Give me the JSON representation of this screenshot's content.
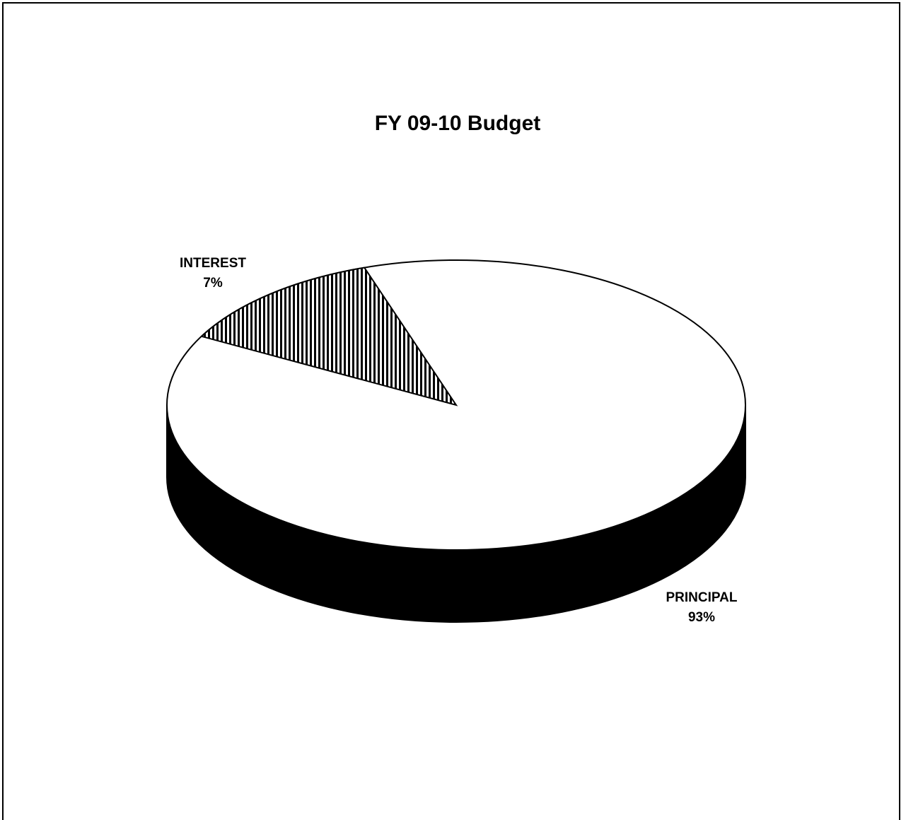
{
  "chart_data": {
    "type": "pie",
    "title": "FY 09-10 Budget",
    "style": "3d",
    "slices": [
      {
        "label": "PRINCIPAL",
        "value": 93,
        "value_label": "93%",
        "fill": "solid-white",
        "color": "#ffffff"
      },
      {
        "label": "INTEREST",
        "value": 7,
        "value_label": "7%",
        "fill": "vertical-hatch",
        "color": "#000000"
      }
    ],
    "side_color": "#000000",
    "legend": "none"
  }
}
